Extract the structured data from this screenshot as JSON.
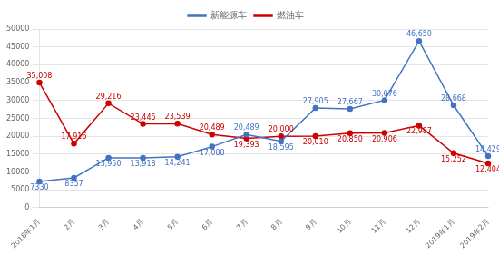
{
  "chart_data": {
    "type": "line",
    "categories": [
      "2018年1月",
      "2月",
      "3月",
      "4月",
      "5月",
      "6月",
      "7月",
      "8月",
      "9月",
      "10月",
      "11月",
      "12月",
      "2019年1月",
      "2019年2月"
    ],
    "series": [
      {
        "name": "新能源车",
        "color": "#4472C4",
        "marker": "circle",
        "values": [
          7330,
          8357,
          13950,
          13918,
          14241,
          17088,
          20489,
          18595,
          27905,
          27667,
          30076,
          46650,
          28668,
          14429
        ],
        "value_labels": [
          "7330",
          "8357",
          "13,950",
          "13,918",
          "14,241",
          "17,088",
          "20,489",
          "18,595",
          "27,905",
          "27,667",
          "30,076",
          "46,650",
          "28,668",
          "14,429"
        ]
      },
      {
        "name": "燃油车",
        "color": "#CC0000",
        "marker": "circle",
        "values": [
          35008,
          17916,
          29216,
          23445,
          23539,
          20489,
          19393,
          20000,
          20010,
          20850,
          20906,
          22987,
          15252,
          12404
        ],
        "value_labels": [
          "35,008",
          "17,916",
          "29,216",
          "23,445",
          "23,539",
          "20,489",
          "19,393",
          "20,000",
          "20,010",
          "20,850",
          "20,906",
          "22,987",
          "15,252",
          "12,404"
        ]
      }
    ],
    "ylim": [
      0,
      50000
    ],
    "yticks": [
      0,
      5000,
      10000,
      15000,
      20000,
      25000,
      30000,
      35000,
      40000,
      45000,
      50000
    ],
    "grid": true,
    "legend": "top",
    "data_labels": true
  }
}
